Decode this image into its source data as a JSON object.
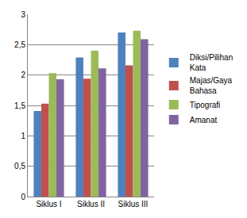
{
  "chart_data": {
    "type": "bar",
    "categories": [
      "Siklus I",
      "Siklus II",
      "Siklus III"
    ],
    "series": [
      {
        "name": "Diksi/Pilihan Kata",
        "color": "#4F81BD",
        "values": [
          1.41,
          2.29,
          2.7
        ]
      },
      {
        "name": "Majas/Gaya Bahasa",
        "color": "#C0504D",
        "values": [
          1.53,
          1.94,
          2.16
        ]
      },
      {
        "name": "Tipografi",
        "color": "#9BBB59",
        "values": [
          2.03,
          2.4,
          2.73
        ]
      },
      {
        "name": "Amanat",
        "color": "#8064A2",
        "values": [
          1.93,
          2.11,
          2.59
        ]
      }
    ],
    "ylim": [
      0,
      3
    ],
    "yticks": [
      0,
      {
        "value": 0.5,
        "label": "0,5"
      },
      1,
      {
        "value": 1.5,
        "label": "1,5"
      },
      2,
      {
        "value": 2.5,
        "label": "2,5"
      },
      3
    ],
    "grid": true,
    "legend": "right"
  }
}
